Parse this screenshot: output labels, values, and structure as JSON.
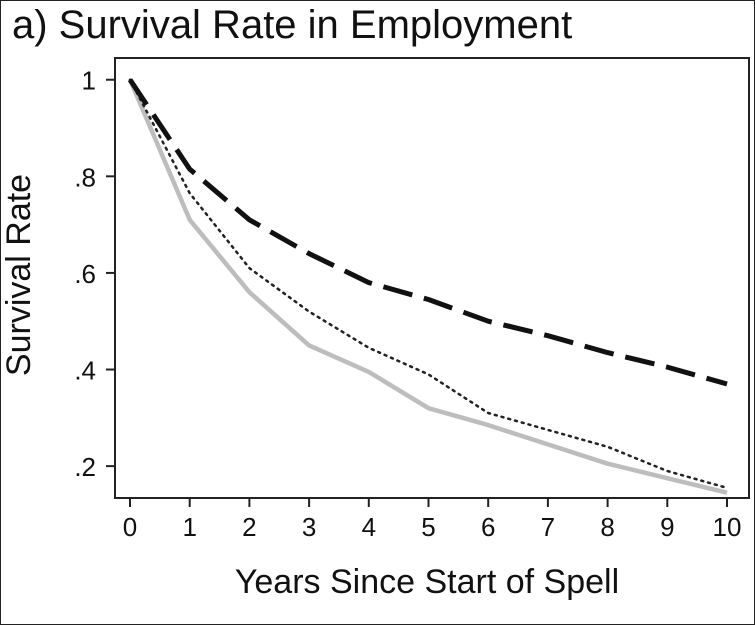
{
  "chart_data": {
    "type": "line",
    "title": "a) Survival Rate in Employment",
    "xlabel": "Years Since Start of Spell",
    "ylabel": "Survival Rate",
    "x": [
      0,
      1,
      2,
      3,
      4,
      5,
      6,
      7,
      8,
      9,
      10
    ],
    "xlim": [
      0,
      10
    ],
    "ylim": [
      0.134,
      1.045
    ],
    "x_ticks": [
      {
        "value": 0,
        "label": "0"
      },
      {
        "value": 1,
        "label": "1"
      },
      {
        "value": 2,
        "label": "2"
      },
      {
        "value": 3,
        "label": "3"
      },
      {
        "value": 4,
        "label": "4"
      },
      {
        "value": 5,
        "label": "5"
      },
      {
        "value": 6,
        "label": "6"
      },
      {
        "value": 7,
        "label": "7"
      },
      {
        "value": 8,
        "label": "8"
      },
      {
        "value": 9,
        "label": "9"
      },
      {
        "value": 10,
        "label": "10"
      }
    ],
    "y_ticks": [
      {
        "value": 0.2,
        "label": ".2"
      },
      {
        "value": 0.4,
        "label": ".4"
      },
      {
        "value": 0.6,
        "label": ".6"
      },
      {
        "value": 0.8,
        "label": ".8"
      },
      {
        "value": 1.0,
        "label": "1"
      }
    ],
    "grid": false,
    "legend": "none",
    "series": [
      {
        "style": "dashed",
        "color": "#111111",
        "values": [
          1.0,
          0.815,
          0.71,
          0.64,
          0.58,
          0.545,
          0.5,
          0.47,
          0.435,
          0.405,
          0.37
        ]
      },
      {
        "style": "dotted",
        "color": "#222222",
        "values": [
          1.0,
          0.765,
          0.61,
          0.52,
          0.445,
          0.39,
          0.31,
          0.275,
          0.24,
          0.19,
          0.155
        ]
      },
      {
        "style": "solid",
        "color": "#bdbdbd",
        "values": [
          1.0,
          0.71,
          0.56,
          0.45,
          0.395,
          0.32,
          0.285,
          0.245,
          0.205,
          0.175,
          0.145
        ]
      }
    ]
  }
}
